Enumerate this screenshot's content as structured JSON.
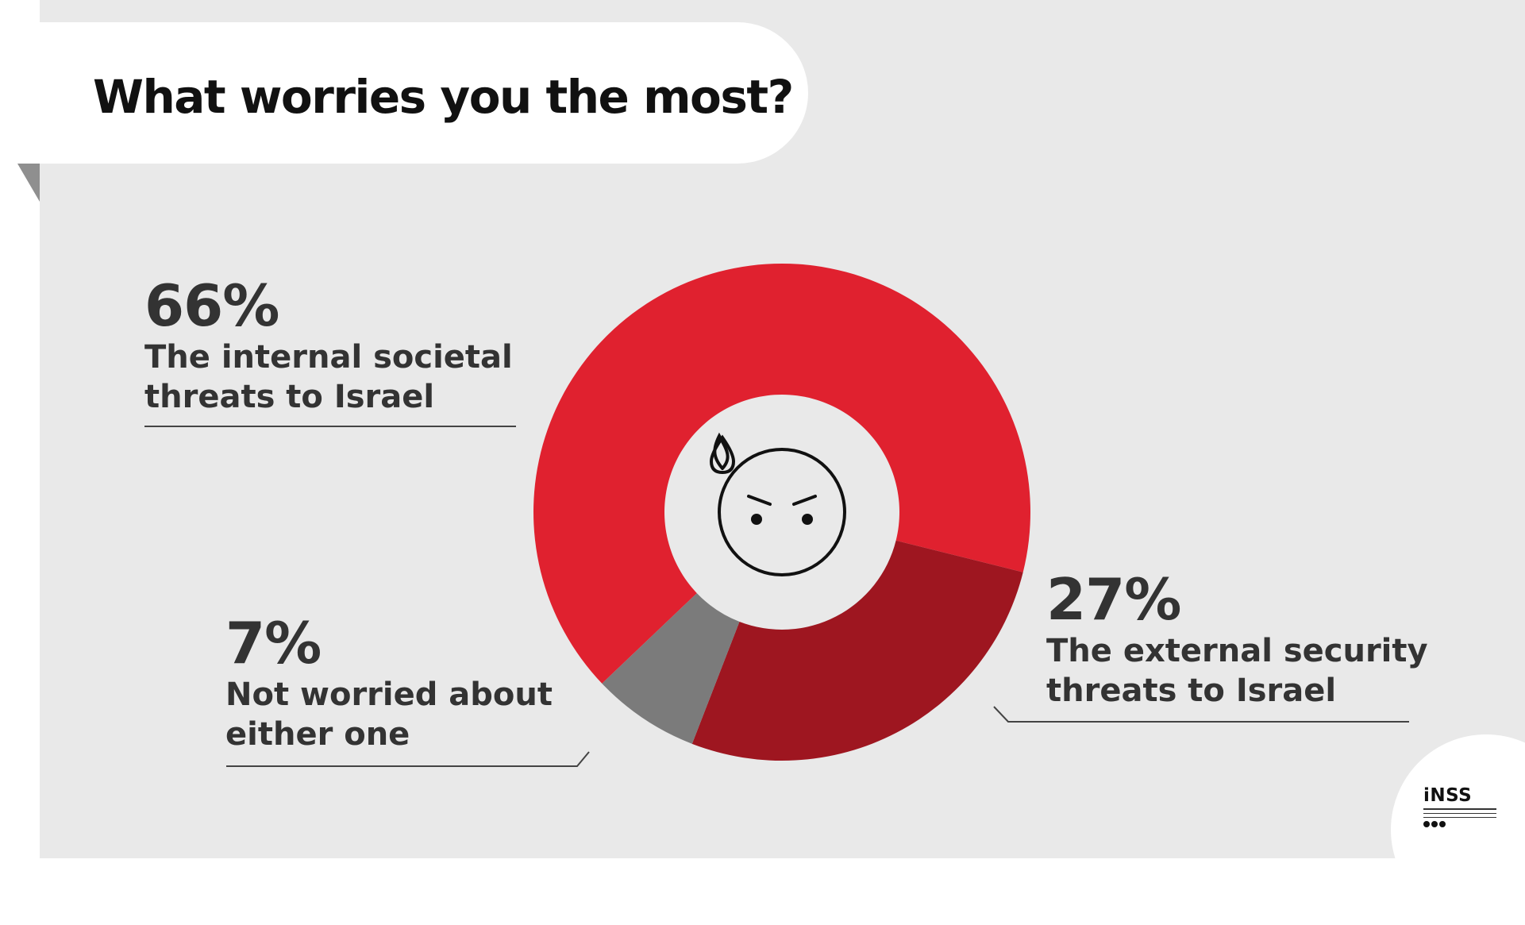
{
  "title": "What worries you the most?",
  "chart_data": {
    "type": "pie",
    "style": "donut",
    "slices": [
      {
        "pct_label": "66%",
        "value": 66,
        "label_lines": [
          "The internal societal",
          "threats to Israel"
        ],
        "color": "#e0212f"
      },
      {
        "pct_label": "27%",
        "value": 27,
        "label_lines": [
          "The external security",
          "threats to Israel"
        ],
        "color": "#9e1620"
      },
      {
        "pct_label": "7%",
        "value": 7,
        "label_lines": [
          "Not worried about",
          "either one"
        ],
        "color": "#7b7b7b"
      }
    ],
    "center_icon": "worried-face-icon"
  },
  "logo": {
    "text": "iNSS",
    "icon": "inss-logo-icon"
  },
  "colors": {
    "background": "#e9e9e9",
    "card": "#ffffff",
    "text": "#333333"
  }
}
